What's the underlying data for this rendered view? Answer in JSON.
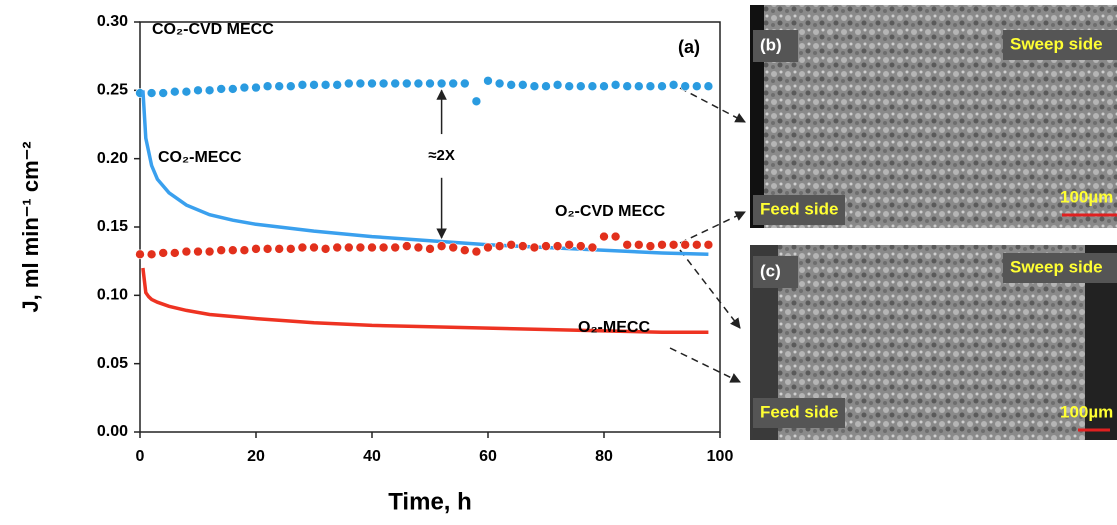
{
  "chart_data": {
    "type": "line",
    "xlabel": "Time, h",
    "ylabel": "J, ml min⁻¹ cm⁻²",
    "xlim": [
      0,
      100
    ],
    "xticks": [
      0,
      20,
      40,
      60,
      80,
      100
    ],
    "ylim": [
      0,
      0.3
    ],
    "yticks": [
      {
        "value": 0,
        "label": "0.00"
      },
      {
        "value": 0.05,
        "label": "0.05"
      },
      {
        "value": 0.1,
        "label": "0.10"
      },
      {
        "value": 0.15,
        "label": "0.15"
      },
      {
        "value": 0.2,
        "label": "0.20"
      },
      {
        "value": 0.25,
        "label": "0.25"
      },
      {
        "value": 0.3,
        "label": "0.30"
      }
    ],
    "annotations": [
      "(a)",
      "≈2X"
    ],
    "series": [
      {
        "name": "CO₂-CVD MECC",
        "color": "#2a9be0",
        "marker": "circle",
        "x": [
          0,
          2,
          4,
          6,
          8,
          10,
          12,
          14,
          16,
          18,
          20,
          22,
          24,
          26,
          28,
          30,
          32,
          34,
          36,
          38,
          40,
          42,
          44,
          46,
          48,
          50,
          52,
          54,
          56,
          58,
          60,
          62,
          64,
          66,
          68,
          70,
          72,
          74,
          76,
          78,
          80,
          82,
          84,
          86,
          88,
          90,
          92,
          94,
          96,
          98
        ],
        "values": [
          0.248,
          0.248,
          0.248,
          0.249,
          0.249,
          0.25,
          0.25,
          0.251,
          0.251,
          0.252,
          0.252,
          0.253,
          0.253,
          0.253,
          0.254,
          0.254,
          0.254,
          0.254,
          0.255,
          0.255,
          0.255,
          0.255,
          0.255,
          0.255,
          0.255,
          0.255,
          0.255,
          0.255,
          0.255,
          0.242,
          0.257,
          0.255,
          0.254,
          0.254,
          0.253,
          0.253,
          0.254,
          0.253,
          0.253,
          0.253,
          0.253,
          0.254,
          0.253,
          0.253,
          0.253,
          0.253,
          0.254,
          0.253,
          0.253,
          0.253
        ]
      },
      {
        "name": "CO₂-MECC",
        "color": "#3aa0ee",
        "marker": "none",
        "x": [
          0.5,
          1,
          2,
          3,
          5,
          8,
          12,
          16,
          20,
          30,
          40,
          50,
          60,
          70,
          80,
          90,
          98
        ],
        "values": [
          0.25,
          0.215,
          0.195,
          0.185,
          0.175,
          0.166,
          0.159,
          0.155,
          0.152,
          0.147,
          0.143,
          0.14,
          0.137,
          0.135,
          0.133,
          0.131,
          0.13
        ]
      },
      {
        "name": "O₂-CVD MECC",
        "color": "#e2301c",
        "marker": "circle",
        "x": [
          0,
          2,
          4,
          6,
          8,
          10,
          12,
          14,
          16,
          18,
          20,
          22,
          24,
          26,
          28,
          30,
          32,
          34,
          36,
          38,
          40,
          42,
          44,
          46,
          48,
          50,
          52,
          54,
          56,
          58,
          60,
          62,
          64,
          66,
          68,
          70,
          72,
          74,
          76,
          78,
          80,
          82,
          84,
          86,
          88,
          90,
          92,
          94,
          96,
          98
        ],
        "values": [
          0.13,
          0.13,
          0.131,
          0.131,
          0.132,
          0.132,
          0.132,
          0.133,
          0.133,
          0.133,
          0.134,
          0.134,
          0.134,
          0.134,
          0.135,
          0.135,
          0.134,
          0.135,
          0.135,
          0.135,
          0.135,
          0.135,
          0.135,
          0.136,
          0.135,
          0.134,
          0.136,
          0.135,
          0.133,
          0.132,
          0.135,
          0.136,
          0.137,
          0.136,
          0.135,
          0.136,
          0.136,
          0.137,
          0.136,
          0.135,
          0.143,
          0.143,
          0.137,
          0.137,
          0.136,
          0.137,
          0.137,
          0.137,
          0.137,
          0.137
        ]
      },
      {
        "name": "O₂-MECC",
        "color": "#ee3322",
        "marker": "none",
        "x": [
          0.5,
          1,
          1.5,
          2,
          3,
          5,
          8,
          12,
          20,
          30,
          40,
          50,
          60,
          70,
          80,
          90,
          98
        ],
        "values": [
          0.12,
          0.102,
          0.099,
          0.097,
          0.095,
          0.092,
          0.089,
          0.086,
          0.083,
          0.08,
          0.078,
          0.077,
          0.076,
          0.075,
          0.074,
          0.073,
          0.073
        ]
      }
    ]
  },
  "panels": [
    {
      "label": "(b)",
      "top_right": "Sweep side",
      "bottom_left": "Feed side",
      "scale": "100µm"
    },
    {
      "label": "(c)",
      "top_right": "Sweep side",
      "bottom_left": "Feed side",
      "scale": "100µm"
    }
  ]
}
